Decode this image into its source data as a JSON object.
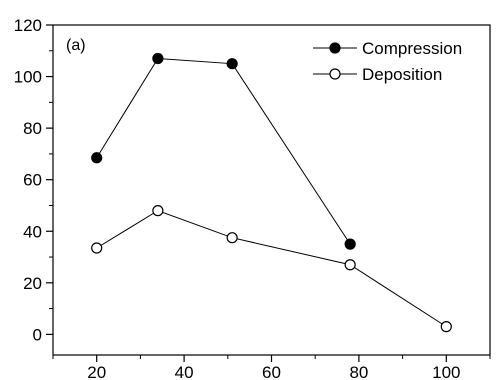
{
  "chart_data": {
    "type": "line",
    "panel_label": "(a)",
    "xlabel": "",
    "ylabel": "",
    "xlim": [
      10,
      110
    ],
    "ylim": [
      -8,
      120
    ],
    "x_ticks": [
      20,
      40,
      60,
      80,
      100
    ],
    "y_ticks": [
      0,
      20,
      40,
      60,
      80,
      100,
      120
    ],
    "grid": false,
    "legend_position": "top-right",
    "series": [
      {
        "name": "Compression",
        "marker": "filled-circle",
        "color": "#000000",
        "x": [
          20,
          34,
          51,
          78
        ],
        "y": [
          68.5,
          107,
          105,
          35
        ]
      },
      {
        "name": "Deposition",
        "marker": "open-circle",
        "color": "#000000",
        "x": [
          20,
          34,
          51,
          78,
          100
        ],
        "y": [
          33.5,
          48,
          37.5,
          27,
          3
        ]
      }
    ]
  }
}
